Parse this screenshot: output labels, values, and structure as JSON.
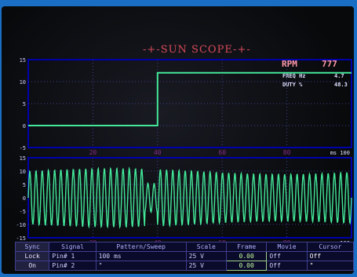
{
  "header": {
    "title": "SUN SCOPE",
    "rpm_label": "RPM",
    "rpm_value": "777"
  },
  "readouts": {
    "freq_label": "FREQ Hz",
    "freq_value": "4.7",
    "duty_label": "DUTY %",
    "duty_value": "48.3"
  },
  "upper_trace": {
    "y_ticks": [
      "15",
      "10",
      "5",
      "0",
      "-5"
    ],
    "x_ticks": [
      "20",
      "40",
      "60",
      "80"
    ],
    "x_unit": "ms 100",
    "signal": {
      "low": 0,
      "high": 12,
      "step_ms": 40
    }
  },
  "lower_trace": {
    "y_ticks": [
      "15",
      "10",
      "5",
      "0",
      "-5",
      "-10",
      "-15"
    ],
    "x_ticks": [
      "20",
      "40",
      "60",
      "80"
    ],
    "x_unit": "ms 100",
    "signal": {
      "amplitude": 11,
      "cycles": 52
    }
  },
  "controls": {
    "side_buttons": [
      "Sync",
      "Lock",
      "On"
    ],
    "headers": [
      "Signal",
      "Pattern/Sweep",
      "Scale",
      "Frame",
      "Movie",
      "Cursor"
    ],
    "rows": [
      {
        "signal": "Pin# 1",
        "sweep": "100 ms",
        "scale": "25 V",
        "frame": "0.00",
        "movie": "Off",
        "cursor": "Off"
      },
      {
        "signal": "Pin# 2",
        "sweep": "\"",
        "scale": "25 V",
        "frame": "0.00",
        "movie": "Off",
        "cursor": "\""
      }
    ]
  },
  "colors": {
    "trace": "#44e89a",
    "grid": "#3f3f90",
    "frame_border": "#0000aa"
  }
}
